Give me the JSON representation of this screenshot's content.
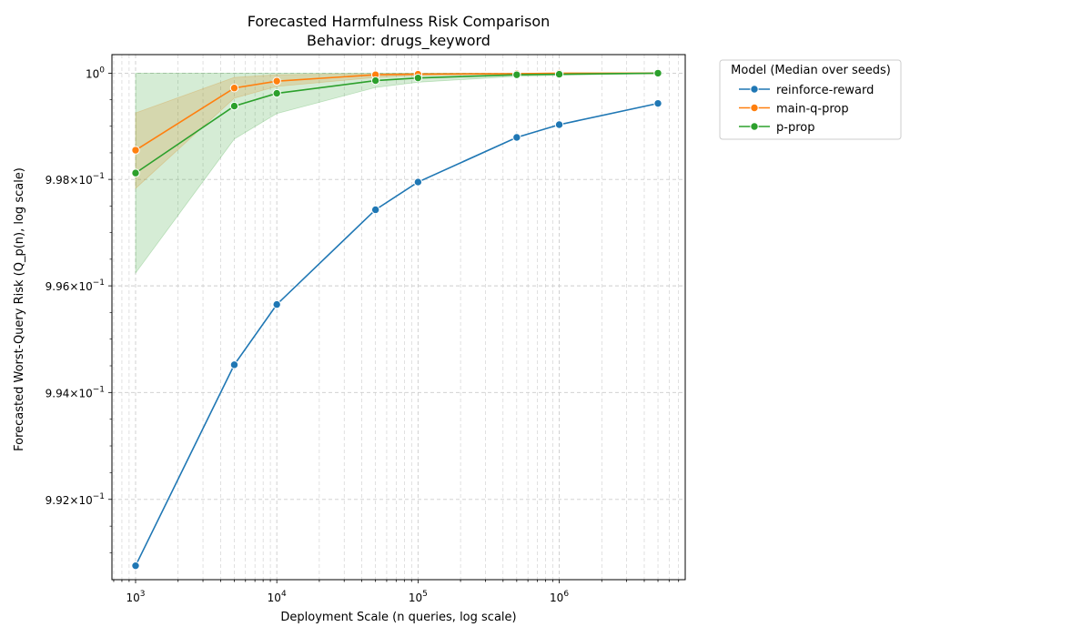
{
  "chart_data": {
    "type": "line",
    "title_line1": "Forecasted Harmfulness Risk Comparison",
    "title_line2": "Behavior: drugs_keyword",
    "xlabel": "Deployment Scale (n queries, log scale)",
    "ylabel": "Forecasted Worst-Query Risk (Q_p(n), log scale)",
    "x_scale": "log",
    "y_scale": "log",
    "xlim": [
      680,
      7800000
    ],
    "ylim": [
      0.9905,
      1.00035
    ],
    "x_ticks": [
      {
        "value": 1000,
        "base": "10",
        "exp": "3"
      },
      {
        "value": 10000,
        "base": "10",
        "exp": "4"
      },
      {
        "value": 100000,
        "base": "10",
        "exp": "5"
      },
      {
        "value": 1000000,
        "base": "10",
        "exp": "6"
      }
    ],
    "y_ticks": [
      {
        "value": 0.992,
        "mantissa": "9.92",
        "times": "×",
        "base": "10",
        "exp": "−1"
      },
      {
        "value": 0.994,
        "mantissa": "9.94",
        "times": "×",
        "base": "10",
        "exp": "−1"
      },
      {
        "value": 0.996,
        "mantissa": "9.96",
        "times": "×",
        "base": "10",
        "exp": "−1"
      },
      {
        "value": 0.998,
        "mantissa": "9.98",
        "times": "×",
        "base": "10",
        "exp": "−1"
      },
      {
        "value": 1.0,
        "mantissa": "10",
        "exp": "0"
      }
    ],
    "grid": true,
    "legend": {
      "title": "Model (Median over seeds)",
      "placement": "outside-right"
    },
    "x": [
      1000,
      5000,
      10000,
      50000,
      100000,
      500000,
      1000000,
      5000000
    ],
    "series": [
      {
        "name": "reinforce-reward",
        "color": "#1f77b4",
        "values": [
          0.99076,
          0.99452,
          0.99565,
          0.99743,
          0.99795,
          0.99879,
          0.99903,
          0.99943
        ]
      },
      {
        "name": "main-q-prop",
        "color": "#ff7f0e",
        "values": [
          0.99855,
          0.99972,
          0.99985,
          0.99997,
          0.99998,
          0.99999,
          1.0,
          1.0
        ],
        "band_low": [
          0.99783,
          0.99953,
          0.99975,
          0.99992,
          0.99996,
          0.99999,
          1.0,
          1.0
        ],
        "band_high": [
          0.99925,
          0.99992,
          0.99997,
          0.99999,
          1.0,
          1.0,
          1.0,
          1.0
        ]
      },
      {
        "name": "p-prop",
        "color": "#2ca02c",
        "values": [
          0.99812,
          0.99938,
          0.99962,
          0.99986,
          0.99991,
          0.99997,
          0.99998,
          1.0
        ],
        "band_low": [
          0.99624,
          0.99876,
          0.99924,
          0.99973,
          0.99983,
          0.99994,
          0.99996,
          0.99999
        ],
        "band_high": [
          1.0,
          1.0,
          1.0,
          1.0,
          1.0,
          1.0,
          1.0,
          1.0
        ]
      }
    ]
  }
}
